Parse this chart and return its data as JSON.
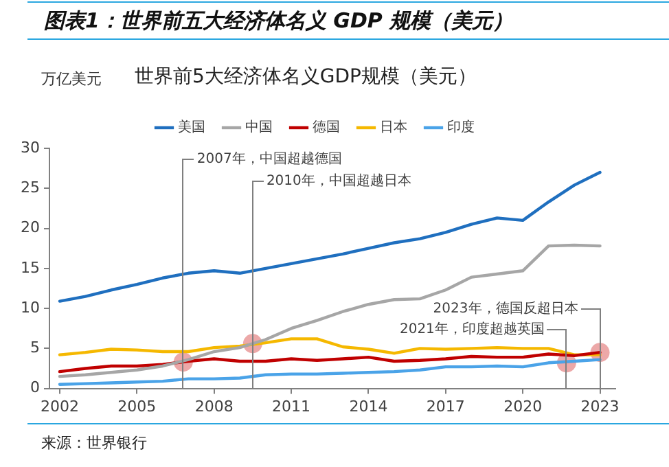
{
  "chart_data": {
    "type": "line",
    "title": "图表1：世界前五大经济体名义 GDP 规模（美元）",
    "subtitle": "世界前5大经济体名义GDP规模（美元）",
    "ylabel": "万亿美元",
    "x": [
      2002,
      2003,
      2004,
      2005,
      2006,
      2007,
      2008,
      2009,
      2010,
      2011,
      2012,
      2013,
      2014,
      2015,
      2016,
      2017,
      2018,
      2019,
      2020,
      2021,
      2022,
      2023
    ],
    "series": [
      {
        "name": "美国",
        "color": "#1f6fbf",
        "values": [
          10.9,
          11.5,
          12.3,
          13.0,
          13.8,
          14.4,
          14.7,
          14.4,
          15.0,
          15.6,
          16.2,
          16.8,
          17.5,
          18.2,
          18.7,
          19.5,
          20.5,
          21.3,
          21.0,
          23.3,
          25.4,
          27.0
        ]
      },
      {
        "name": "中国",
        "color": "#a6a6a6",
        "values": [
          1.5,
          1.7,
          2.0,
          2.3,
          2.8,
          3.6,
          4.6,
          5.1,
          6.1,
          7.5,
          8.5,
          9.6,
          10.5,
          11.1,
          11.2,
          12.3,
          13.9,
          14.3,
          14.7,
          17.8,
          17.9,
          17.8
        ]
      },
      {
        "name": "德国",
        "color": "#c00000",
        "values": [
          2.1,
          2.5,
          2.8,
          2.8,
          3.0,
          3.4,
          3.7,
          3.4,
          3.4,
          3.7,
          3.5,
          3.7,
          3.9,
          3.4,
          3.5,
          3.7,
          4.0,
          3.9,
          3.9,
          4.3,
          4.1,
          4.5
        ]
      },
      {
        "name": "日本",
        "color": "#f5b800",
        "values": [
          4.2,
          4.5,
          4.9,
          4.8,
          4.6,
          4.6,
          5.1,
          5.3,
          5.7,
          6.2,
          6.2,
          5.2,
          4.9,
          4.4,
          5.0,
          4.9,
          5.0,
          5.1,
          5.0,
          5.0,
          4.2,
          4.2
        ]
      },
      {
        "name": "印度",
        "color": "#4aa3e8",
        "values": [
          0.5,
          0.6,
          0.7,
          0.8,
          0.9,
          1.2,
          1.2,
          1.3,
          1.7,
          1.8,
          1.8,
          1.9,
          2.0,
          2.1,
          2.3,
          2.7,
          2.7,
          2.8,
          2.7,
          3.2,
          3.4,
          3.6
        ]
      },
      {
        "type": "scatter",
        "color": "#e06e6e",
        "marker": "circle",
        "x": [
          2006.8,
          2009.5,
          2023,
          2021.7
        ],
        "values": [
          3.3,
          5.6,
          4.5,
          3.2
        ]
      }
    ],
    "xlim": [
      2001.6,
      2023.6
    ],
    "xticks": [
      2002,
      2005,
      2008,
      2011,
      2014,
      2017,
      2020,
      2023
    ],
    "ylim": [
      0,
      30
    ],
    "yticks": [
      0,
      5,
      10,
      15,
      20,
      25,
      30
    ],
    "grid": false,
    "legend": "top",
    "marker": "none",
    "line_style": "solid",
    "annotations": [
      "2007年，中国超越德国",
      "2010年，中国超越日本",
      "2023年，德国反超日本",
      "2021年，印度超越英国",
      "来源：世界银行"
    ]
  }
}
